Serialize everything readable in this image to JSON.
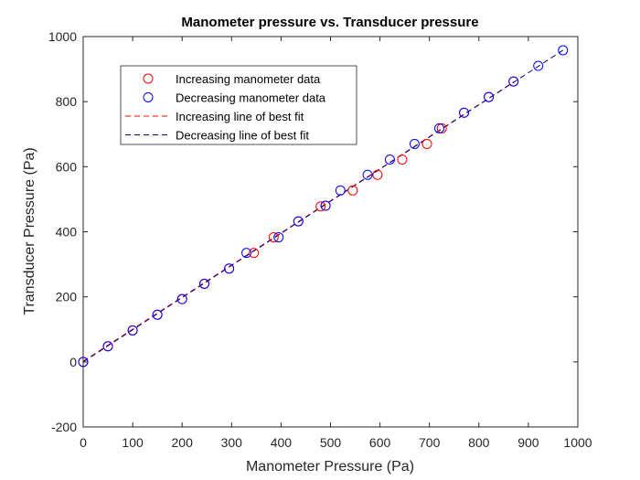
{
  "chart_data": {
    "type": "scatter",
    "title": "Manometer pressure vs. Transducer pressure",
    "xlabel": "Manometer Pressure (Pa)",
    "ylabel": "Transducer Pressure (Pa)",
    "xlim": [
      0,
      1000
    ],
    "ylim": [
      -200,
      1000
    ],
    "xticks": [
      "0",
      "100",
      "200",
      "300",
      "400",
      "500",
      "600",
      "700",
      "800",
      "900",
      "1000"
    ],
    "yticks": [
      "-200",
      "0",
      "200",
      "400",
      "600",
      "800",
      "1000"
    ],
    "grid": false,
    "legend_position": "top-left",
    "series": [
      {
        "name": "Increasing manometer data",
        "kind": "markers",
        "marker": "circle",
        "color": "#ff0000",
        "x": [
          0,
          50,
          100,
          150,
          200,
          245,
          295,
          345,
          385,
          435,
          480,
          490,
          545,
          595,
          645,
          695,
          725,
          770,
          820,
          870
        ],
        "y": [
          0,
          48,
          97,
          145,
          193,
          240,
          287,
          335,
          383,
          432,
          478,
          480,
          527,
          575,
          622,
          670,
          718,
          766,
          814,
          862
        ]
      },
      {
        "name": "Decreasing manometer data",
        "kind": "markers",
        "marker": "circle",
        "color": "#0000ff",
        "x": [
          0,
          50,
          100,
          150,
          200,
          245,
          295,
          330,
          395,
          435,
          490,
          520,
          575,
          620,
          670,
          720,
          770,
          820,
          870,
          920,
          970
        ],
        "y": [
          0,
          48,
          97,
          145,
          193,
          240,
          287,
          335,
          383,
          432,
          480,
          527,
          575,
          622,
          670,
          718,
          766,
          814,
          862,
          910,
          958
        ]
      },
      {
        "name": "Increasing line of best fit",
        "kind": "dashed-line",
        "color": "#ff0000",
        "x": [
          0,
          870
        ],
        "y": [
          2,
          860
        ]
      },
      {
        "name": "Decreasing line of best fit",
        "kind": "dashed-line",
        "color": "#000080",
        "x": [
          0,
          970
        ],
        "y": [
          0,
          958
        ]
      }
    ]
  }
}
